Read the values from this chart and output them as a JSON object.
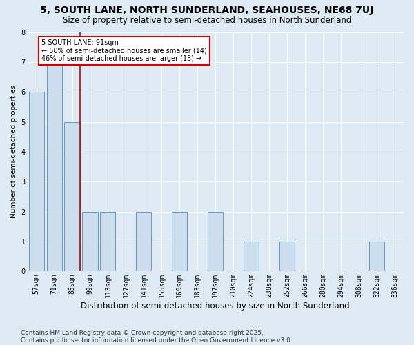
{
  "title": "5, SOUTH LANE, NORTH SUNDERLAND, SEAHOUSES, NE68 7UJ",
  "subtitle": "Size of property relative to semi-detached houses in North Sunderland",
  "xlabel": "Distribution of semi-detached houses by size in North Sunderland",
  "ylabel": "Number of semi-detached properties",
  "categories": [
    "57sqm",
    "71sqm",
    "85sqm",
    "99sqm",
    "113sqm",
    "127sqm",
    "141sqm",
    "155sqm",
    "169sqm",
    "183sqm",
    "197sqm",
    "210sqm",
    "224sqm",
    "238sqm",
    "252sqm",
    "266sqm",
    "280sqm",
    "294sqm",
    "308sqm",
    "322sqm",
    "336sqm"
  ],
  "values": [
    6,
    7,
    5,
    2,
    2,
    0,
    2,
    0,
    2,
    0,
    2,
    0,
    1,
    0,
    1,
    0,
    0,
    0,
    0,
    1,
    0
  ],
  "bar_color": "#ccdded",
  "bar_edge_color": "#6699bb",
  "highlight_line_index": 2,
  "annotation_title": "5 SOUTH LANE: 91sqm",
  "annotation_line1": "← 50% of semi-detached houses are smaller (14)",
  "annotation_line2": "46% of semi-detached houses are larger (13) →",
  "annotation_box_color": "#ffffff",
  "annotation_box_edge": "#cc0000",
  "highlight_line_color": "#cc0000",
  "ylim": [
    0,
    8
  ],
  "yticks": [
    0,
    1,
    2,
    3,
    4,
    5,
    6,
    7,
    8
  ],
  "background_color": "#ddeaf4",
  "plot_background": "#ddeaf4",
  "footer": "Contains HM Land Registry data © Crown copyright and database right 2025.\nContains public sector information licensed under the Open Government Licence v3.0.",
  "title_fontsize": 10,
  "subtitle_fontsize": 8.5,
  "xlabel_fontsize": 8.5,
  "ylabel_fontsize": 7.5,
  "tick_fontsize": 7,
  "footer_fontsize": 6.5
}
